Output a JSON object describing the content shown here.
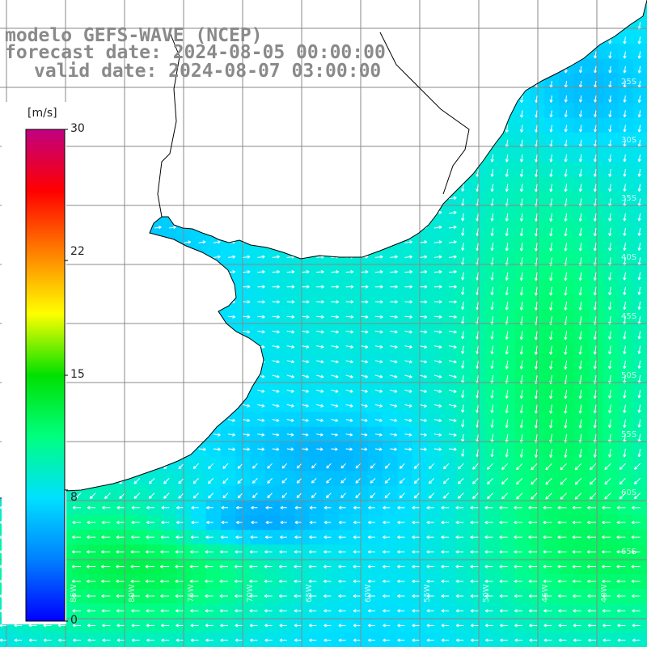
{
  "header": {
    "line1": "modelo GEFS-WAVE (NCEP)",
    "line2": "forecast date: 2024-08-05 00:00:00",
    "line3": "valid date: 2024-08-07 03:00:00"
  },
  "colorbar": {
    "unit": "[m/s]",
    "ticks": [
      "30",
      "22",
      "15",
      "8",
      "0"
    ],
    "tick_values": [
      30,
      22,
      15,
      8,
      0
    ],
    "min": 0,
    "max": 30,
    "colors": [
      "#0000ff",
      "#0080ff",
      "#00e0ff",
      "#00ff80",
      "#00e000",
      "#ffff00",
      "#ff8000",
      "#ff0000",
      "#c00080"
    ]
  },
  "map": {
    "field": "wind speed",
    "land_color": "#ffffff",
    "grid_color": "#888888",
    "coast_color": "#000000",
    "arrow_color": "#ffffff",
    "lat_labels": [
      "25S",
      "30S",
      "35S",
      "40S",
      "45S",
      "50S",
      "55S",
      "60S",
      "65S"
    ],
    "lon_labels": [
      "90W",
      "85W",
      "80W",
      "75W",
      "70W",
      "65W",
      "60W",
      "55W",
      "50W",
      "45W",
      "40W"
    ]
  }
}
